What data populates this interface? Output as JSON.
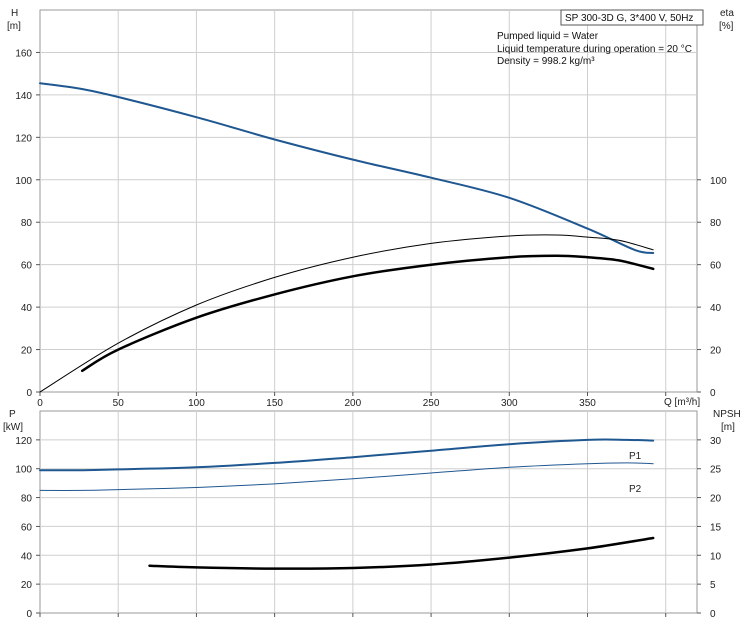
{
  "pump_title": "SP 300-3D G, 3*400 V, 50Hz",
  "info_lines": [
    "Pumped liquid = Water",
    "Liquid temperature during operation = 20 °C",
    "Density = 998.2 kg/m³"
  ],
  "colors": {
    "blue": "#1f5791",
    "black": "#000000",
    "grid": "#cfcfcf"
  },
  "chart_data": [
    {
      "type": "line",
      "panel": "upper",
      "x_ticks": [
        "0",
        "50",
        "100",
        "150",
        "200",
        "250",
        "300",
        "350"
      ],
      "y_left_ticks": [
        "0",
        "20",
        "40",
        "60",
        "80",
        "100",
        "120",
        "140",
        "160"
      ],
      "y_right_ticks": [
        "0",
        "20",
        "40",
        "60",
        "80",
        "100"
      ],
      "xlabel": "Q [m³/h]",
      "ylabel_left": [
        "H",
        "[m]"
      ],
      "ylabel_right": [
        "eta",
        "[%]"
      ],
      "xlim": [
        0,
        420
      ],
      "ylim_left": [
        0,
        180
      ],
      "ylim_right": [
        0,
        180
      ],
      "grid": true,
      "series": [
        {
          "axis": "left",
          "color": "blue",
          "width": 2,
          "x": [
            0,
            25,
            50,
            100,
            150,
            200,
            250,
            300,
            350,
            380,
            392
          ],
          "y": [
            145.5,
            143,
            139,
            129.5,
            119,
            109.5,
            101,
            91.5,
            77,
            67,
            65.5
          ]
        },
        {
          "axis": "right",
          "color": "black",
          "width": 1,
          "x": [
            0,
            50,
            100,
            150,
            200,
            250,
            300,
            330,
            350,
            370,
            392
          ],
          "y": [
            0,
            23,
            41,
            54,
            63.5,
            70,
            73.5,
            74,
            73,
            71.5,
            67
          ]
        },
        {
          "axis": "right",
          "color": "black",
          "width": 2.5,
          "x": [
            27,
            50,
            100,
            150,
            200,
            250,
            300,
            330,
            350,
            370,
            392
          ],
          "y": [
            10,
            20,
            35,
            46,
            54.5,
            60,
            63.5,
            64.2,
            63.5,
            62,
            58
          ]
        }
      ]
    },
    {
      "type": "line",
      "panel": "lower",
      "y_left_ticks": [
        "0",
        "20",
        "40",
        "60",
        "80",
        "100",
        "120"
      ],
      "y_right_ticks": [
        "0",
        "5",
        "10",
        "15",
        "20",
        "25",
        "30"
      ],
      "ylabel_left": [
        "P",
        "[kW]"
      ],
      "ylabel_right": [
        "NPSH",
        "[m]"
      ],
      "xlim": [
        0,
        420
      ],
      "ylim_left": [
        0,
        140
      ],
      "ylim_right": [
        0,
        35
      ],
      "grid": true,
      "series": [
        {
          "name": "P1",
          "axis": "left",
          "color": "blue",
          "width": 2,
          "x": [
            0,
            27,
            50,
            100,
            150,
            200,
            250,
            300,
            350,
            375,
            392
          ],
          "y": [
            99,
            99,
            99.5,
            101,
            104,
            108,
            112.5,
            117,
            120,
            120,
            119.5
          ]
        },
        {
          "name": "P2",
          "axis": "left",
          "color": "blue",
          "width": 1,
          "x": [
            0,
            27,
            50,
            100,
            150,
            200,
            250,
            300,
            350,
            375,
            392
          ],
          "y": [
            85,
            85,
            85.5,
            87,
            89.5,
            93,
            97,
            101,
            103.5,
            104,
            103.5
          ]
        },
        {
          "axis": "right",
          "color": "black",
          "width": 2.5,
          "x": [
            70,
            100,
            150,
            200,
            250,
            300,
            350,
            392
          ],
          "y": [
            8.2,
            7.9,
            7.7,
            7.8,
            8.4,
            9.6,
            11.2,
            13
          ]
        }
      ]
    }
  ]
}
